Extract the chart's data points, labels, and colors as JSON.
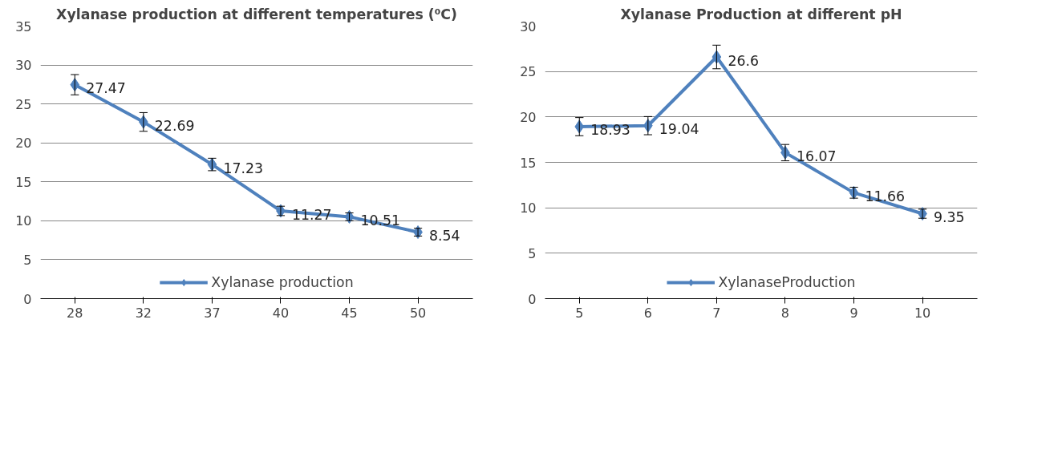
{
  "chart_data": [
    {
      "type": "line",
      "title": "Xylanase production at different temperatures (⁰C)",
      "categories": [
        "28",
        "32",
        "37",
        "40",
        "45",
        "50"
      ],
      "series": [
        {
          "name": "Xylanase production",
          "color": "#4f81bd",
          "values": [
            27.47,
            22.69,
            17.23,
            11.27,
            10.51,
            8.54
          ],
          "errors": [
            1.3,
            1.2,
            0.8,
            0.6,
            0.5,
            0.5
          ]
        }
      ],
      "ylim": [
        0,
        35
      ],
      "yticks": [
        0,
        5,
        10,
        15,
        20,
        25,
        30,
        35
      ],
      "grid": "y",
      "legend": "bottom",
      "marker": "diamond",
      "line_style": "solid",
      "data_labels": true
    },
    {
      "type": "line",
      "title": "Xylanase Production at different pH",
      "categories": [
        "5",
        "6",
        "7",
        "8",
        "9",
        "10"
      ],
      "series": [
        {
          "name": "XylanaseProduction",
          "color": "#4f81bd",
          "values": [
            18.93,
            19.04,
            26.6,
            16.07,
            11.66,
            9.35
          ],
          "errors": [
            1.0,
            1.0,
            1.3,
            0.9,
            0.6,
            0.5
          ]
        }
      ],
      "ylim": [
        0,
        30
      ],
      "yticks": [
        0,
        5,
        10,
        15,
        20,
        25,
        30
      ],
      "grid": "y",
      "legend": "bottom",
      "marker": "diamond",
      "line_style": "solid",
      "data_labels": true
    }
  ]
}
